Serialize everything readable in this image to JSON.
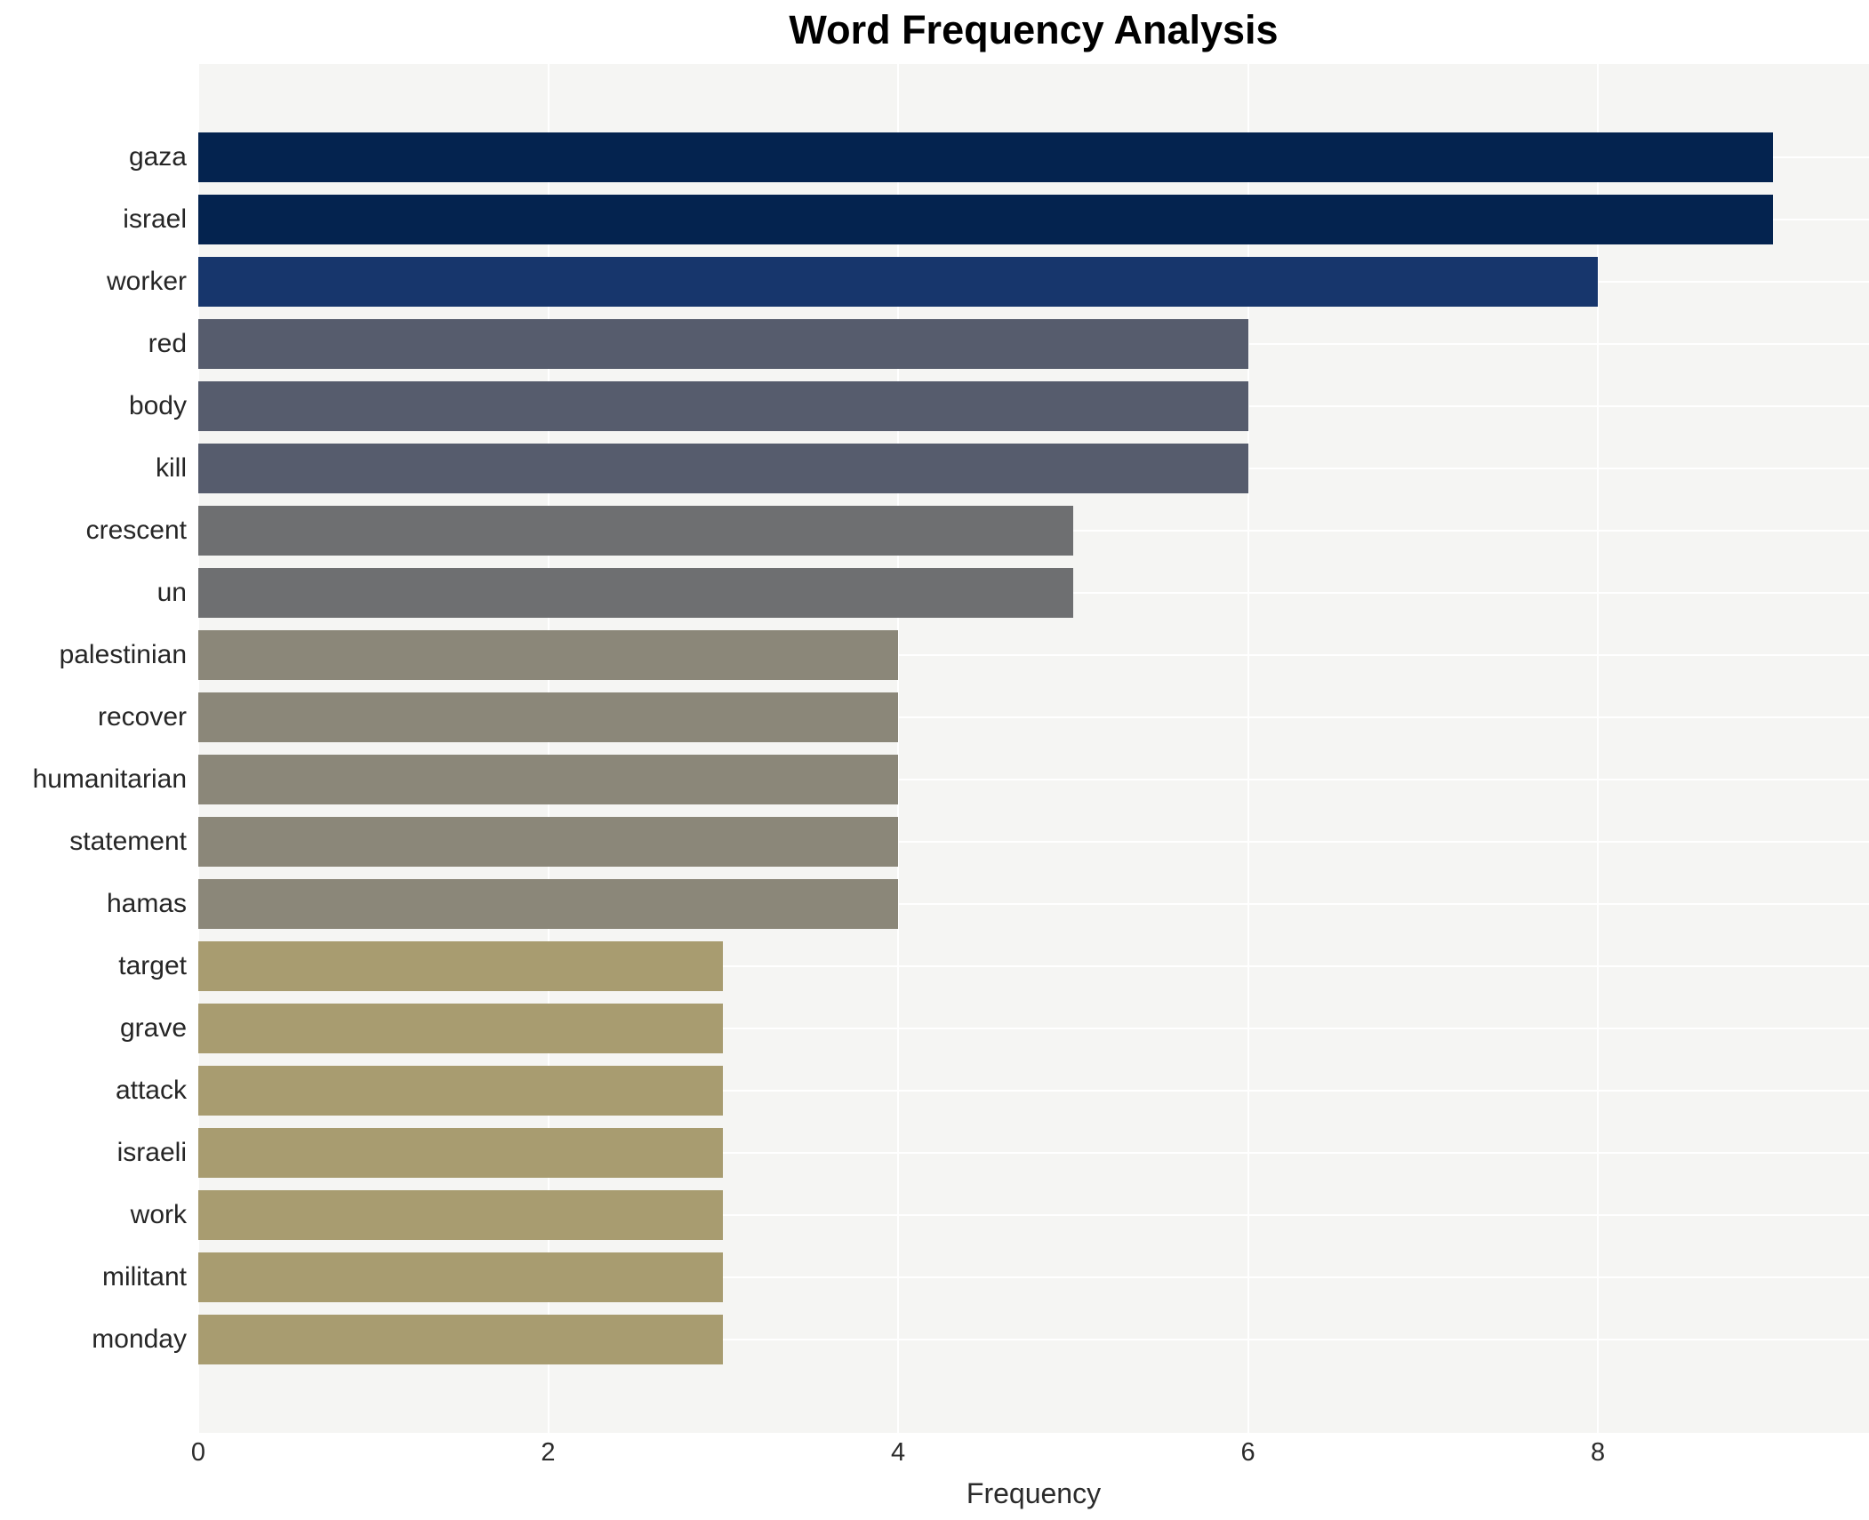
{
  "chart_data": {
    "type": "bar",
    "orientation": "horizontal",
    "title": "Word Frequency Analysis",
    "xlabel": "Frequency",
    "ylabel": "",
    "categories": [
      "gaza",
      "israel",
      "worker",
      "red",
      "body",
      "kill",
      "crescent",
      "un",
      "palestinian",
      "recover",
      "humanitarian",
      "statement",
      "hamas",
      "target",
      "grave",
      "attack",
      "israeli",
      "work",
      "militant",
      "monday"
    ],
    "values": [
      9,
      9,
      8,
      6,
      6,
      6,
      5,
      5,
      4,
      4,
      4,
      4,
      4,
      3,
      3,
      3,
      3,
      3,
      3,
      3
    ],
    "bar_colors": [
      "#04234f",
      "#04234f",
      "#17366c",
      "#565c6d",
      "#565c6d",
      "#565c6d",
      "#6e6f71",
      "#6e6f71",
      "#8b8779",
      "#8b8779",
      "#8b8779",
      "#8b8779",
      "#8b8779",
      "#a89c70",
      "#a89c70",
      "#a89c70",
      "#a89c70",
      "#a89c70",
      "#a89c70",
      "#a89c70"
    ],
    "xlim": [
      0,
      9.55
    ],
    "xticks": [
      0,
      2,
      4,
      6,
      8
    ],
    "legend": "none",
    "grid": "major-white-on-light-gray",
    "panel_bg": "#f5f5f3",
    "gridline_color": "#ffffff",
    "title_color": "#000000",
    "label_color": "#262626",
    "tick_color": "#2b2b2b"
  }
}
